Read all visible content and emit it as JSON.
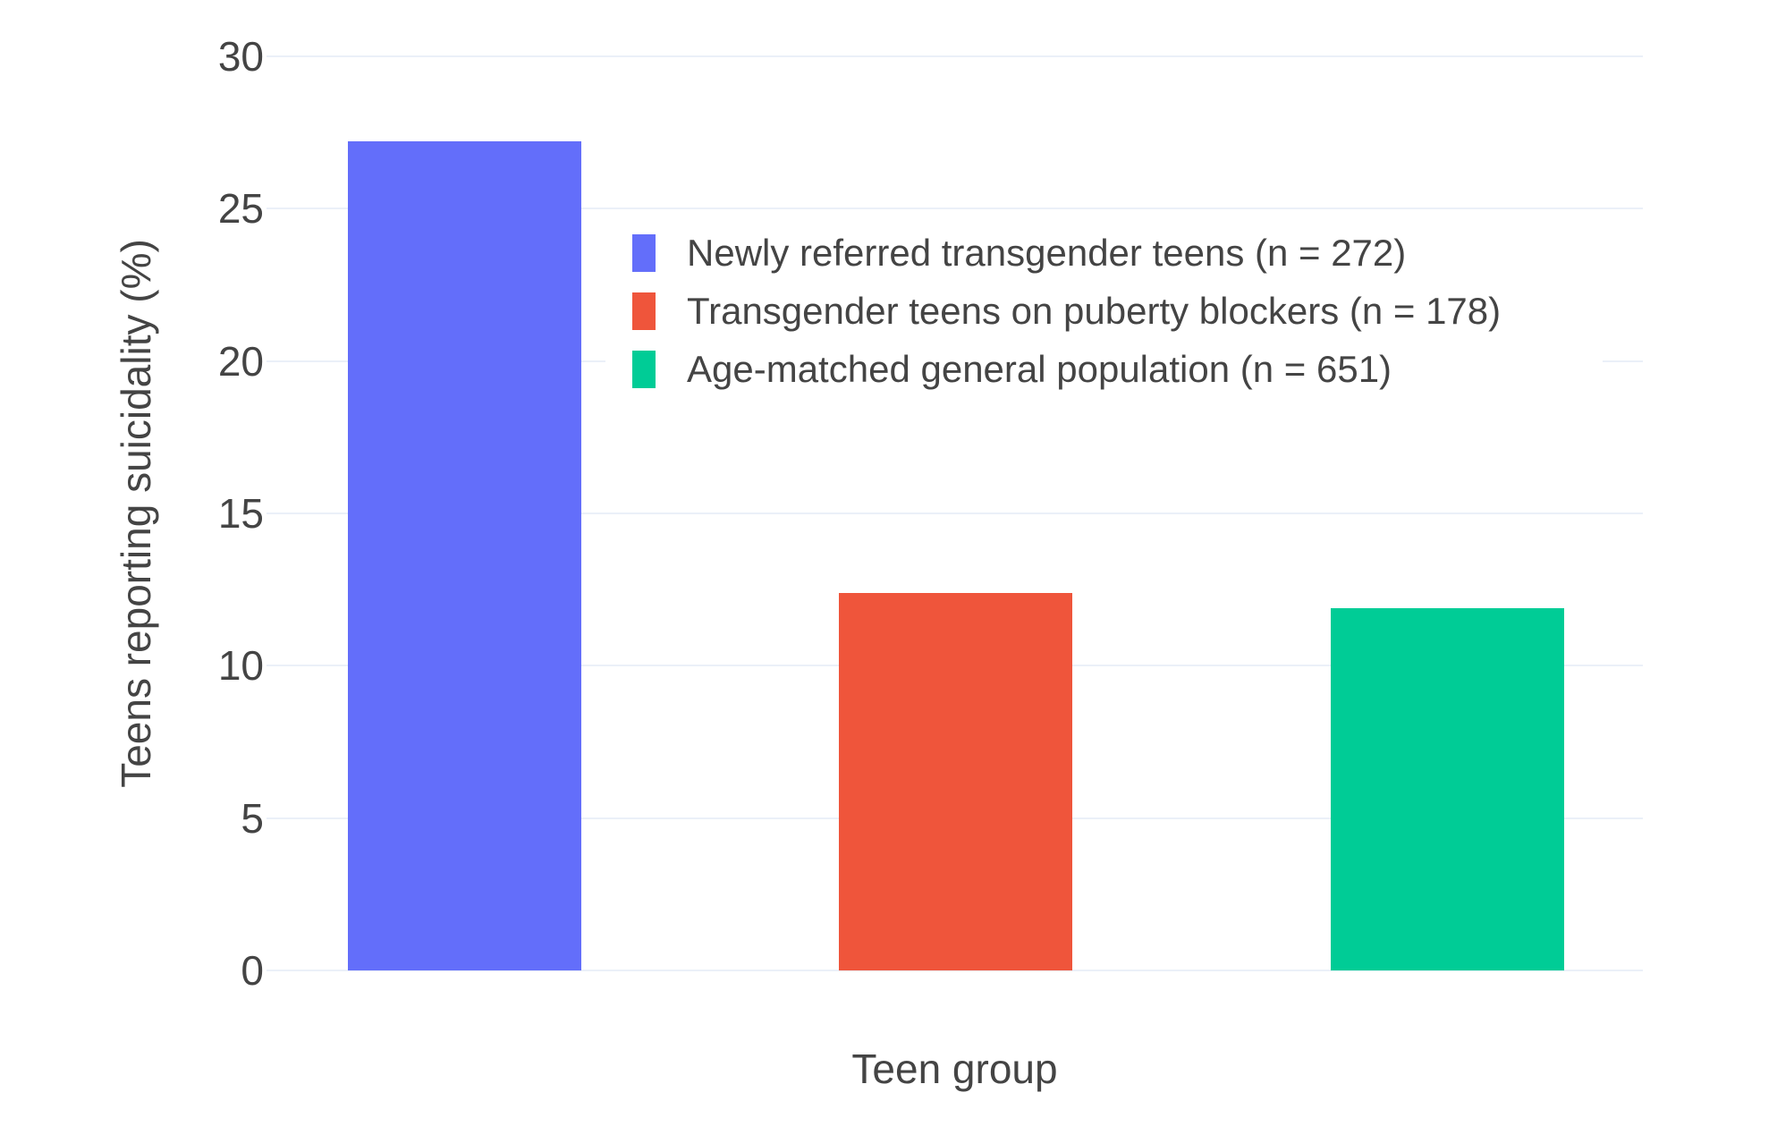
{
  "chart_data": {
    "type": "bar",
    "title": "",
    "categories": [
      "Newly referred transgender teens (n = 272)",
      "Transgender teens on puberty blockers (n = 178)",
      "Age-matched general population (n = 651)"
    ],
    "values": [
      27.2,
      12.4,
      11.9
    ],
    "bar_colors": [
      "#636EFA",
      "#EF553B",
      "#00CC96"
    ],
    "xlabel": "Teen group",
    "ylabel": "Teens reporting suicidality (%)",
    "ylim": [
      0,
      30
    ],
    "yticks": [
      0,
      5,
      10,
      15,
      20,
      25,
      30
    ],
    "grid": true,
    "legend_position": "inside-top",
    "legend": {
      "entries": [
        {
          "label": "Newly referred transgender teens (n = 272)",
          "color": "#636EFA"
        },
        {
          "label": "Transgender teens on puberty blockers (n = 178)",
          "color": "#EF553B"
        },
        {
          "label": "Age-matched general population (n = 651)",
          "color": "#00CC96"
        }
      ]
    }
  },
  "colors": {
    "background": "#FFFFFF",
    "grid": "#EBF0F8",
    "text": "#444444"
  }
}
